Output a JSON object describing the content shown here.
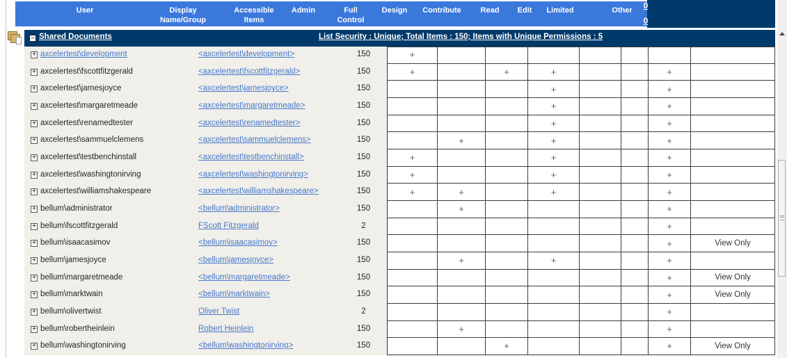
{
  "header": {
    "columns": [
      "User",
      "Display\nName/Group",
      "Accessible\nItems",
      "Admin",
      "Full\nControl",
      "Design",
      "Contribute",
      "Read",
      "Edit",
      "Limited",
      "Other"
    ],
    "zero_links": [
      "0",
      "0"
    ]
  },
  "group": {
    "collapse_glyph": "−",
    "title": "Shared Documents",
    "summary": "List Security : Unique; Total Items : 150; Items with Unique Permissions : 5"
  },
  "glyphs": {
    "expand": "+",
    "permission_mark": "+"
  },
  "colors": {
    "header_blue": "#3b78dc",
    "navy": "#003a6a",
    "link_blue": "#4678cc",
    "row_beige": "#f1efe9",
    "grid_border": "#3a3a3a"
  },
  "permission_columns": [
    "Admin",
    "Full Control",
    "Design",
    "Contribute",
    "Read",
    "Edit",
    "Limited",
    "Other"
  ],
  "rows": [
    {
      "user": "axcelertest\\development",
      "user_link": true,
      "display": "<axcelertest\\development>",
      "items": "150",
      "cells": [
        "+",
        "",
        "",
        "",
        "",
        "",
        "",
        ""
      ]
    },
    {
      "user": "axcelertest\\fscottfitzgerald",
      "user_link": false,
      "display": "<axcelertest\\fscottfitzgerald>",
      "items": "150",
      "cells": [
        "+",
        "",
        "+",
        "+",
        "",
        "",
        "+",
        ""
      ]
    },
    {
      "user": "axcelertest\\jamesjoyce",
      "user_link": false,
      "display": "<axcelertest\\jamesjoyce>",
      "items": "150",
      "cells": [
        "",
        "",
        "",
        "+",
        "",
        "",
        "+",
        ""
      ]
    },
    {
      "user": "axcelertest\\margaretmeade",
      "user_link": false,
      "display": "<axcelertest\\margaretmeade>",
      "items": "150",
      "cells": [
        "",
        "",
        "",
        "+",
        "",
        "",
        "+",
        ""
      ]
    },
    {
      "user": "axcelertest\\renamedtester",
      "user_link": false,
      "display": "<axcelertest\\renamedtester>",
      "items": "150",
      "cells": [
        "",
        "",
        "",
        "+",
        "",
        "",
        "+",
        ""
      ]
    },
    {
      "user": "axcelertest\\sammuelclemens",
      "user_link": false,
      "display": "<axcelertest\\sammuelclemens>",
      "items": "150",
      "cells": [
        "",
        "+",
        "",
        "+",
        "",
        "",
        "+",
        ""
      ]
    },
    {
      "user": "axcelertest\\testbenchinstall",
      "user_link": false,
      "display": "<axcelertest\\testbenchinstall>",
      "items": "150",
      "cells": [
        "+",
        "",
        "",
        "+",
        "",
        "",
        "+",
        ""
      ]
    },
    {
      "user": "axcelertest\\washingtonirving",
      "user_link": false,
      "display": "<axcelertest\\washingtonirving>",
      "items": "150",
      "cells": [
        "+",
        "",
        "",
        "+",
        "",
        "",
        "+",
        ""
      ]
    },
    {
      "user": "axcelertest\\williamshakespeare",
      "user_link": false,
      "display": "<axcelertest\\williamshakespeare>",
      "items": "150",
      "cells": [
        "+",
        "+",
        "",
        "+",
        "",
        "",
        "+",
        ""
      ]
    },
    {
      "user": "bellum\\administrator",
      "user_link": false,
      "display": "<bellum\\administrator>",
      "items": "150",
      "cells": [
        "",
        "+",
        "",
        "",
        "",
        "",
        "+",
        ""
      ]
    },
    {
      "user": "bellum\\fscottfitzgerald",
      "user_link": false,
      "display": "FScott Fitzgerald",
      "items": "2",
      "cells": [
        "",
        "",
        "",
        "",
        "",
        "",
        "+",
        ""
      ]
    },
    {
      "user": "bellum\\isaacasimov",
      "user_link": false,
      "display": "<bellum\\isaacasimov>",
      "items": "150",
      "cells": [
        "",
        "",
        "",
        "",
        "",
        "",
        "+",
        "View Only"
      ]
    },
    {
      "user": "bellum\\jamesjoyce",
      "user_link": false,
      "display": "<bellum\\jamesjoyce>",
      "items": "150",
      "cells": [
        "",
        "+",
        "",
        "+",
        "",
        "",
        "+",
        ""
      ]
    },
    {
      "user": "bellum\\margaretmeade",
      "user_link": false,
      "display": "<bellum\\margaretmeade>",
      "items": "150",
      "cells": [
        "",
        "",
        "",
        "",
        "",
        "",
        "+",
        "View Only"
      ]
    },
    {
      "user": "bellum\\marktwain",
      "user_link": false,
      "display": "<bellum\\marktwain>",
      "items": "150",
      "cells": [
        "",
        "",
        "",
        "",
        "",
        "",
        "+",
        "View Only"
      ]
    },
    {
      "user": "bellum\\olivertwist",
      "user_link": false,
      "display": "Oliver Twist",
      "items": "2",
      "cells": [
        "",
        "",
        "",
        "",
        "",
        "",
        "+",
        ""
      ]
    },
    {
      "user": "bellum\\robertheinlein",
      "user_link": false,
      "display": "Robert Heinlein",
      "items": "150",
      "cells": [
        "",
        "+",
        "",
        "",
        "",
        "",
        "+",
        ""
      ]
    },
    {
      "user": "bellum\\washingtonirving",
      "user_link": false,
      "display": "<bellum\\washingtonirving>",
      "items": "150",
      "cells": [
        "",
        "",
        "+",
        "",
        "",
        "",
        "+",
        "View Only"
      ]
    }
  ]
}
